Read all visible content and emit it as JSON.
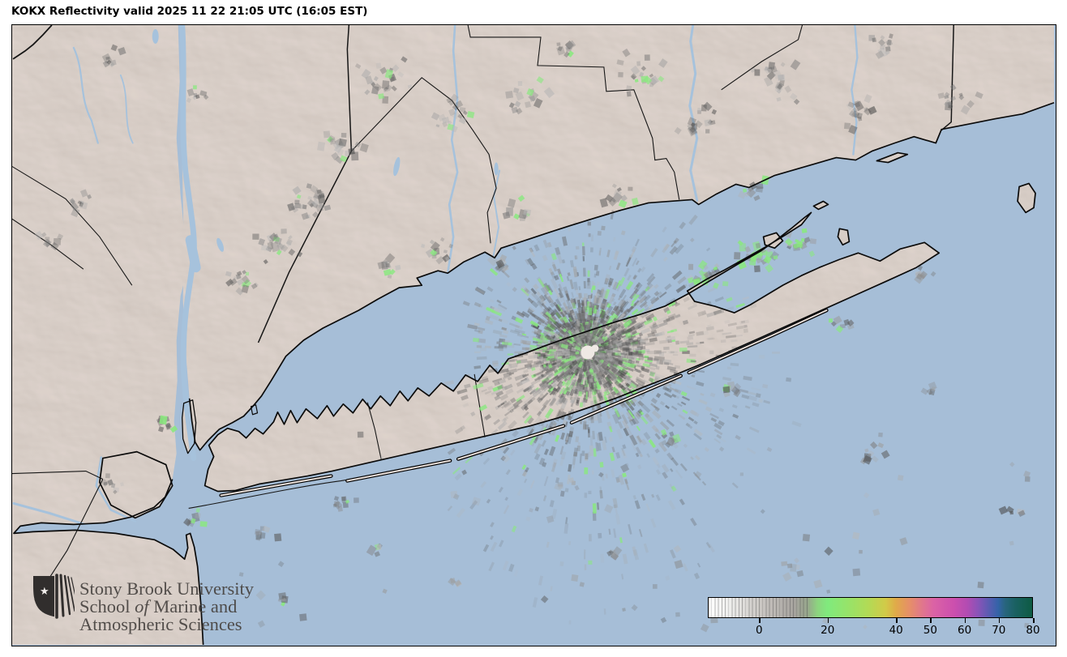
{
  "header": {
    "title": "KOKX Reflectivity valid 2025 11 22 21:05 UTC (16:05 EST)"
  },
  "logo": {
    "line1": "Stony Brook University",
    "line2_pre": "School ",
    "line2_italic": "of",
    "line2_post": " Marine and",
    "line3": "Atmospheric Sciences"
  },
  "colorbar": {
    "min": -15,
    "max": 80,
    "ticks": [
      0,
      20,
      40,
      50,
      60,
      70,
      80
    ],
    "stops": [
      {
        "v": -15,
        "c": "#ffffff"
      },
      {
        "v": -8,
        "c": "#ececea"
      },
      {
        "v": -2,
        "c": "#d3d0cd"
      },
      {
        "v": 4,
        "c": "#bdb9b5"
      },
      {
        "v": 10,
        "c": "#a7a49f"
      },
      {
        "v": 14,
        "c": "#97a68c"
      },
      {
        "v": 17,
        "c": "#8cd57f"
      },
      {
        "v": 20,
        "c": "#80ea7d"
      },
      {
        "v": 26,
        "c": "#97e369"
      },
      {
        "v": 32,
        "c": "#b3da55"
      },
      {
        "v": 37,
        "c": "#d2ca48"
      },
      {
        "v": 40,
        "c": "#e0aa49"
      },
      {
        "v": 44,
        "c": "#e68f68"
      },
      {
        "v": 48,
        "c": "#e0758f"
      },
      {
        "v": 51,
        "c": "#db63a5"
      },
      {
        "v": 57,
        "c": "#cc4fae"
      },
      {
        "v": 61,
        "c": "#b24cb2"
      },
      {
        "v": 64,
        "c": "#8b53b8"
      },
      {
        "v": 67,
        "c": "#5e5bb2"
      },
      {
        "v": 70,
        "c": "#3463a8"
      },
      {
        "v": 72,
        "c": "#28657f"
      },
      {
        "v": 75,
        "c": "#1a6162"
      },
      {
        "v": 80,
        "c": "#0e5b43"
      }
    ]
  },
  "map_colors": {
    "water": "#a6bed7",
    "land": "#e9dfd9",
    "coastline": "#0a0a0a",
    "echo_green": "#8ae87f",
    "river": "#a6c2dc"
  }
}
